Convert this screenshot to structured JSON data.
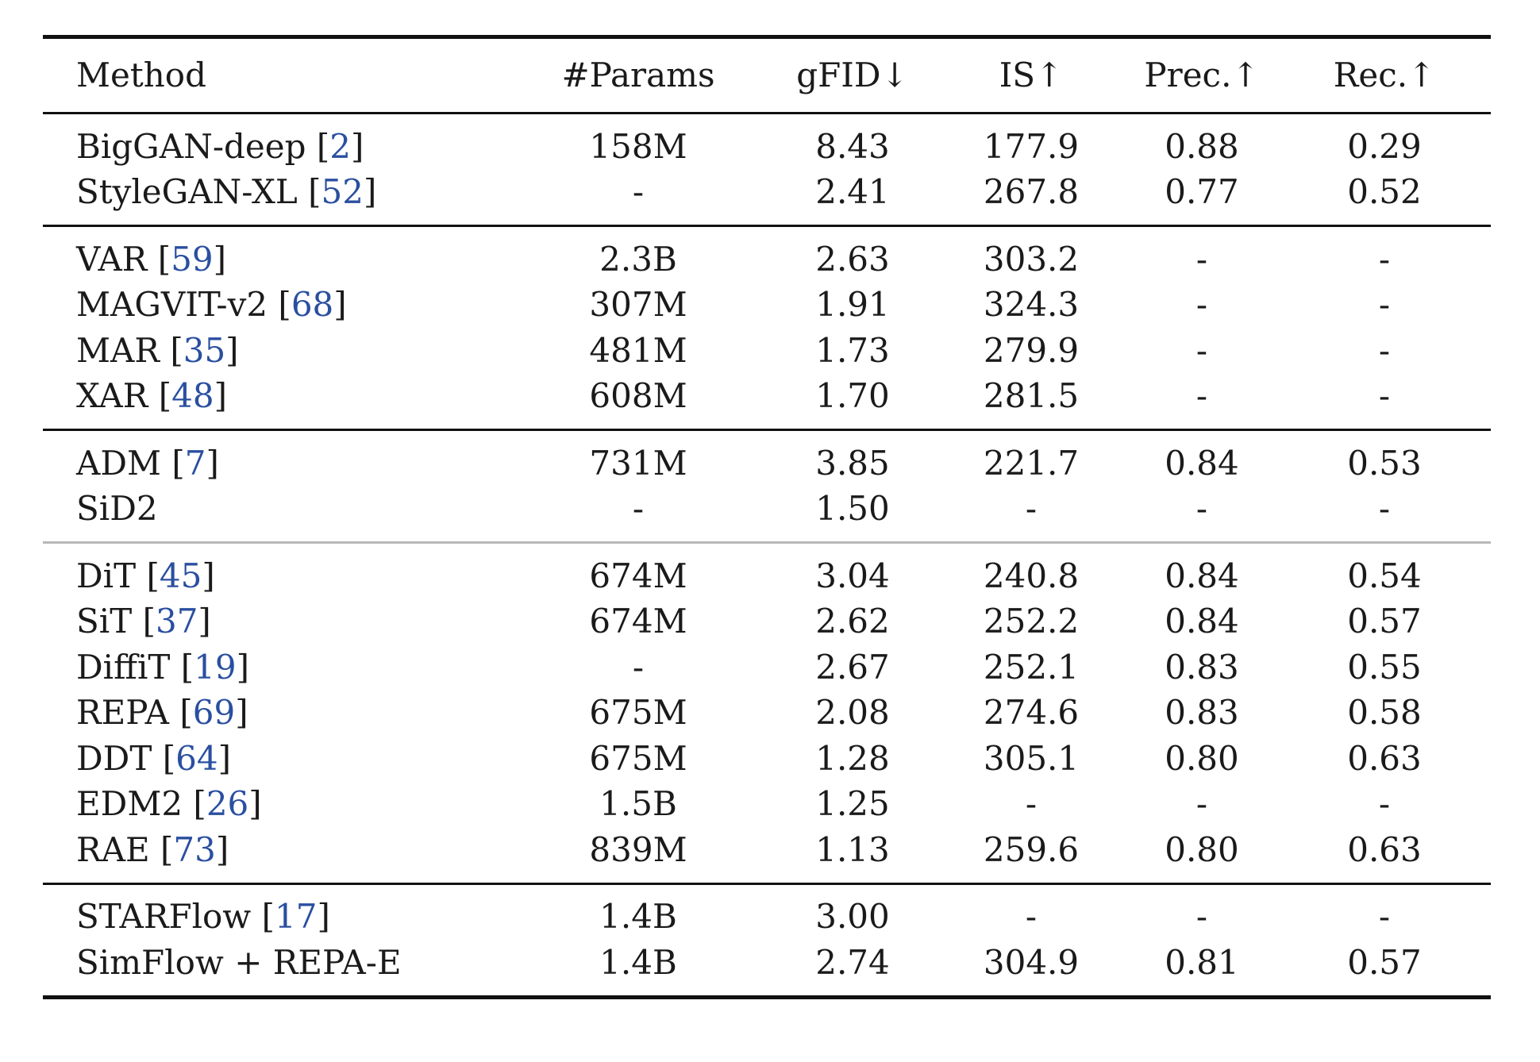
{
  "header": {
    "method": "Method",
    "params": "#Params",
    "gfid": "gFID↓",
    "is": "IS↑",
    "prec": "Prec.↑",
    "rec": "Rec.↑"
  },
  "groups": [
    {
      "rows": [
        {
          "name": "BigGAN-deep",
          "cite": "2",
          "params": "158M",
          "gfid": "8.43",
          "is": "177.9",
          "prec": "0.88",
          "rec": "0.29"
        },
        {
          "name": "StyleGAN-XL",
          "cite": "52",
          "params": "-",
          "gfid": "2.41",
          "is": "267.8",
          "prec": "0.77",
          "rec": "0.52"
        }
      ]
    },
    {
      "rows": [
        {
          "name": "VAR",
          "cite": "59",
          "params": "2.3B",
          "gfid": "2.63",
          "is": "303.2",
          "prec": "-",
          "rec": "-"
        },
        {
          "name": "MAGVIT-v2",
          "cite": "68",
          "params": "307M",
          "gfid": "1.91",
          "is": "324.3",
          "prec": "-",
          "rec": "-"
        },
        {
          "name": "MAR",
          "cite": "35",
          "params": "481M",
          "gfid": "1.73",
          "is": "279.9",
          "prec": "-",
          "rec": "-"
        },
        {
          "name": "XAR",
          "cite": "48",
          "params": "608M",
          "gfid": "1.70",
          "is": "281.5",
          "prec": "-",
          "rec": "-"
        }
      ]
    },
    {
      "rows": [
        {
          "name": "ADM",
          "cite": "7",
          "params": "731M",
          "gfid": "3.85",
          "is": "221.7",
          "prec": "0.84",
          "rec": "0.53"
        },
        {
          "name": "SiD2",
          "cite": "",
          "params": "-",
          "gfid": "1.50",
          "is": "-",
          "prec": "-",
          "rec": "-"
        }
      ]
    },
    {
      "rows": [
        {
          "name": "DiT",
          "cite": "45",
          "params": "674M",
          "gfid": "3.04",
          "is": "240.8",
          "prec": "0.84",
          "rec": "0.54"
        },
        {
          "name": "SiT",
          "cite": "37",
          "params": "674M",
          "gfid": "2.62",
          "is": "252.2",
          "prec": "0.84",
          "rec": "0.57"
        },
        {
          "name": "DiffiT",
          "cite": "19",
          "params": "-",
          "gfid": "2.67",
          "is": "252.1",
          "prec": "0.83",
          "rec": "0.55"
        },
        {
          "name": "REPA",
          "cite": "69",
          "params": "675M",
          "gfid": "2.08",
          "is": "274.6",
          "prec": "0.83",
          "rec": "0.58"
        },
        {
          "name": "DDT",
          "cite": "64",
          "params": "675M",
          "gfid": "1.28",
          "is": "305.1",
          "prec": "0.80",
          "rec": "0.63"
        },
        {
          "name": "EDM2",
          "cite": "26",
          "params": "1.5B",
          "gfid": "1.25",
          "is": "-",
          "prec": "-",
          "rec": "-"
        },
        {
          "name": "RAE",
          "cite": "73",
          "params": "839M",
          "gfid": "1.13",
          "is": "259.6",
          "prec": "0.80",
          "rec": "0.63"
        }
      ]
    },
    {
      "rows": [
        {
          "name": "STARFlow",
          "cite": "17",
          "params": "1.4B",
          "gfid": "3.00",
          "is": "-",
          "prec": "-",
          "rec": "-"
        },
        {
          "name": "SimFlow + REPA-E",
          "cite": "",
          "params": "1.4B",
          "gfid": "2.74",
          "is": "304.9",
          "prec": "0.81",
          "rec": "0.57"
        }
      ]
    }
  ]
}
